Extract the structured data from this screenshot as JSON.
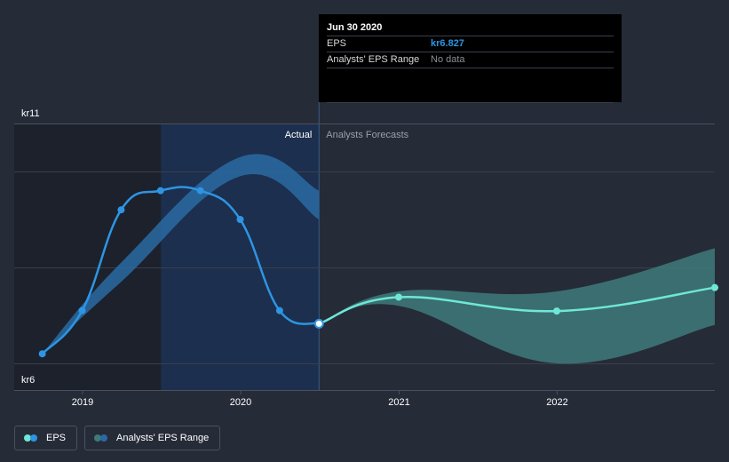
{
  "tooltip": {
    "date": "Jun 30 2020",
    "eps_label": "EPS",
    "eps_value": "kr6.827",
    "range_label": "Analysts' EPS Range",
    "range_value": "No data"
  },
  "legend": {
    "eps_label": "EPS",
    "range_label": "Analysts' EPS Range"
  },
  "colors": {
    "background": "#262b38",
    "eps_actual": "#2d95e3",
    "eps_forecast": "#6fe7d7",
    "range_band_actual": "#2a6aa3",
    "range_band_forecast": "#3f7a7a",
    "past_highlight": "#1e3d6b"
  },
  "chart_data": {
    "type": "line",
    "x_ticks": [
      "2019",
      "2020",
      "2021",
      "2022"
    ],
    "y_ticks": [
      "kr11",
      "kr6"
    ],
    "ylim": [
      6,
      11
    ],
    "region_labels": {
      "past": "Actual",
      "future": "Analysts Forecasts"
    },
    "series": [
      {
        "name": "EPS",
        "points": [
          {
            "x": "2018-09-30",
            "y": 6.2
          },
          {
            "x": "2018-12-31",
            "y": 7.1
          },
          {
            "x": "2019-03-31",
            "y": 9.2
          },
          {
            "x": "2019-06-30",
            "y": 9.6
          },
          {
            "x": "2019-09-30",
            "y": 9.6
          },
          {
            "x": "2019-12-31",
            "y": 9.0
          },
          {
            "x": "2020-03-31",
            "y": 7.1
          },
          {
            "x": "2020-06-30",
            "y": 6.827
          }
        ]
      },
      {
        "name": "EPS forecast",
        "points": [
          {
            "x": "2020-06-30",
            "y": 6.827
          },
          {
            "x": "2020-12-31",
            "y": 7.38
          },
          {
            "x": "2021-12-31",
            "y": 7.09
          },
          {
            "x": "2022-12-31",
            "y": 7.58
          }
        ]
      },
      {
        "name": "Analysts' EPS Range",
        "points": [
          {
            "x": "2018-09-30",
            "low": 6.2,
            "high": 6.2
          },
          {
            "x": "2019-03-31",
            "low": 7.7,
            "high": 8.1
          },
          {
            "x": "2019-12-31",
            "low": 9.9,
            "high": 10.3
          },
          {
            "x": "2020-06-30",
            "low": 9.0,
            "high": 9.6
          }
        ]
      },
      {
        "name": "Analysts' EPS Range forecast",
        "points": [
          {
            "x": "2020-06-30",
            "low": 6.827,
            "high": 6.827
          },
          {
            "x": "2020-12-31",
            "low": 7.2,
            "high": 7.5
          },
          {
            "x": "2021-12-31",
            "low": 6.0,
            "high": 7.5
          },
          {
            "x": "2022-12-31",
            "low": 6.8,
            "high": 8.4
          }
        ]
      }
    ]
  }
}
